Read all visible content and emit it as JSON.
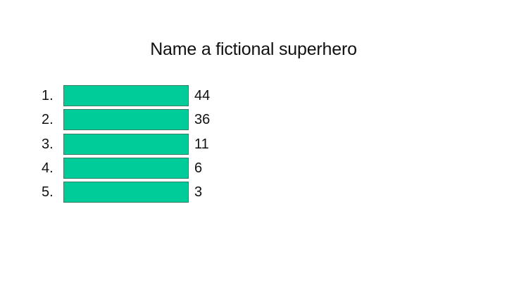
{
  "question": "Name a fictional superhero",
  "answers": [
    {
      "rank": "1.",
      "score": "44"
    },
    {
      "rank": "2.",
      "score": "36"
    },
    {
      "rank": "3.",
      "score": "11"
    },
    {
      "rank": "4.",
      "score": "6"
    },
    {
      "rank": "5.",
      "score": "3"
    }
  ],
  "colors": {
    "answer_board": "#00cc99",
    "answer_border": "#3d7b63",
    "text": "#111111",
    "background": "#ffffff"
  }
}
